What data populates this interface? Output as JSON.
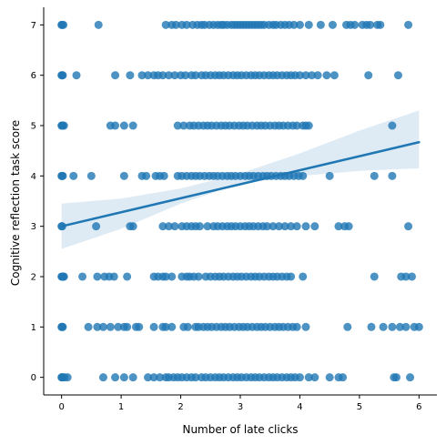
{
  "chart_data": {
    "type": "scatter",
    "title": "",
    "xlabel": "Number of late clicks",
    "ylabel": "Cognitive reflection task score",
    "xlim": [
      -0.3,
      6.3
    ],
    "ylim": [
      -0.35,
      7.35
    ],
    "xticks": [
      0,
      1,
      2,
      3,
      4,
      5,
      6
    ],
    "yticks": [
      0,
      1,
      2,
      3,
      4,
      5,
      6,
      7
    ],
    "grid": false,
    "colors": {
      "points": "#1f77b4",
      "fit_line": "#1f77b4",
      "band": "#1f77b4",
      "axis": "#000000"
    },
    "regression": {
      "x": [
        0,
        6
      ],
      "y": [
        3.0,
        4.67
      ]
    },
    "confidence_band": {
      "x": [
        0,
        1,
        2,
        3,
        4,
        5,
        6
      ],
      "upper": [
        3.45,
        3.55,
        3.75,
        4.05,
        4.45,
        4.9,
        5.3
      ],
      "lower": [
        2.55,
        2.95,
        3.45,
        3.85,
        4.0,
        4.1,
        4.15
      ]
    },
    "series": [
      {
        "y": 7,
        "x": [
          0,
          0.01,
          0.03,
          0.62,
          1.75,
          1.85,
          1.92,
          2.02,
          2.1,
          2.2,
          2.28,
          2.35,
          2.4,
          2.48,
          2.55,
          2.62,
          2.68,
          2.72,
          2.78,
          2.85,
          2.9,
          2.95,
          3.0,
          3.05,
          3.1,
          3.15,
          3.2,
          3.25,
          3.3,
          3.35,
          3.4,
          3.48,
          3.55,
          3.6,
          3.68,
          3.75,
          3.82,
          3.9,
          4.0,
          4.15,
          4.35,
          4.55,
          4.78,
          4.85,
          4.92,
          5.05,
          5.12,
          5.18,
          5.3,
          5.35,
          5.82
        ]
      },
      {
        "y": 6,
        "x": [
          0,
          0.01,
          0.02,
          0.25,
          0.9,
          1.15,
          1.35,
          1.45,
          1.55,
          1.62,
          1.7,
          1.8,
          1.9,
          2.0,
          2.08,
          2.18,
          2.25,
          2.35,
          2.42,
          2.5,
          2.58,
          2.65,
          2.72,
          2.8,
          2.88,
          2.95,
          3.02,
          3.1,
          3.18,
          3.25,
          3.32,
          3.4,
          3.48,
          3.55,
          3.62,
          3.7,
          3.78,
          3.85,
          3.92,
          4.0,
          4.1,
          4.2,
          4.3,
          4.45,
          4.58,
          5.15,
          5.65
        ]
      },
      {
        "y": 5,
        "x": [
          0,
          0.01,
          0.02,
          0.04,
          0.82,
          0.9,
          1.05,
          1.2,
          1.95,
          2.05,
          2.15,
          2.22,
          2.3,
          2.38,
          2.45,
          2.52,
          2.6,
          2.68,
          2.75,
          2.82,
          2.9,
          2.98,
          3.05,
          3.12,
          3.2,
          3.28,
          3.35,
          3.42,
          3.5,
          3.58,
          3.65,
          3.72,
          3.8,
          3.88,
          3.95,
          4.05,
          4.1,
          4.15,
          5.55
        ]
      },
      {
        "y": 4,
        "x": [
          0,
          0.01,
          0.02,
          0.2,
          0.5,
          1.05,
          1.35,
          1.42,
          1.58,
          1.65,
          1.72,
          1.95,
          2.02,
          2.1,
          2.18,
          2.25,
          2.32,
          2.4,
          2.48,
          2.55,
          2.62,
          2.7,
          2.78,
          2.85,
          2.92,
          3.0,
          3.08,
          3.15,
          3.22,
          3.3,
          3.38,
          3.45,
          3.52,
          3.6,
          3.68,
          3.75,
          3.82,
          3.9,
          3.98,
          4.05,
          4.5,
          5.25,
          5.55
        ]
      },
      {
        "y": 3,
        "x": [
          0,
          0.01,
          0.58,
          1.15,
          1.2,
          1.7,
          1.8,
          1.9,
          2.02,
          2.1,
          2.18,
          2.25,
          2.32,
          2.45,
          2.55,
          2.62,
          2.7,
          2.78,
          2.85,
          2.92,
          3.0,
          3.08,
          3.15,
          3.22,
          3.3,
          3.38,
          3.45,
          3.55,
          3.65,
          3.75,
          3.85,
          3.95,
          4.1,
          4.25,
          4.65,
          4.75,
          4.82,
          5.82
        ]
      },
      {
        "y": 2,
        "x": [
          0,
          0.01,
          0.02,
          0.03,
          0.04,
          0.35,
          0.6,
          0.72,
          0.8,
          0.88,
          1.1,
          1.55,
          1.62,
          1.7,
          1.75,
          1.85,
          2.02,
          2.1,
          2.15,
          2.22,
          2.3,
          2.42,
          2.5,
          2.58,
          2.65,
          2.72,
          2.8,
          2.88,
          2.95,
          3.02,
          3.1,
          3.18,
          3.25,
          3.32,
          3.4,
          3.48,
          3.55,
          3.62,
          3.7,
          3.78,
          3.85,
          4.05,
          5.25,
          5.7,
          5.78,
          5.88
        ]
      },
      {
        "y": 1,
        "x": [
          0,
          0.01,
          0.02,
          0.45,
          0.6,
          0.7,
          0.82,
          0.95,
          1.05,
          1.1,
          1.25,
          1.3,
          1.55,
          1.7,
          1.75,
          1.85,
          2.05,
          2.12,
          2.25,
          2.3,
          2.38,
          2.45,
          2.52,
          2.6,
          2.68,
          2.75,
          2.82,
          2.9,
          2.98,
          3.05,
          3.12,
          3.2,
          3.28,
          3.35,
          3.42,
          3.5,
          3.58,
          3.65,
          3.72,
          3.8,
          3.88,
          3.95,
          4.1,
          4.8,
          5.2,
          5.4,
          5.55,
          5.68,
          5.78,
          5.92,
          6.0
        ]
      },
      {
        "y": 0,
        "x": [
          0,
          0.01,
          0.02,
          0.05,
          0.1,
          0.7,
          0.9,
          1.05,
          1.2,
          1.45,
          1.55,
          1.65,
          1.75,
          1.8,
          1.88,
          1.95,
          2.02,
          2.1,
          2.18,
          2.25,
          2.35,
          2.42,
          2.5,
          2.58,
          2.65,
          2.72,
          2.8,
          2.88,
          2.95,
          3.02,
          3.1,
          3.18,
          3.25,
          3.32,
          3.4,
          3.48,
          3.55,
          3.62,
          3.7,
          3.78,
          3.85,
          3.92,
          4.0,
          4.15,
          4.25,
          4.5,
          4.65,
          4.72,
          5.58,
          5.62,
          5.85
        ]
      }
    ]
  }
}
